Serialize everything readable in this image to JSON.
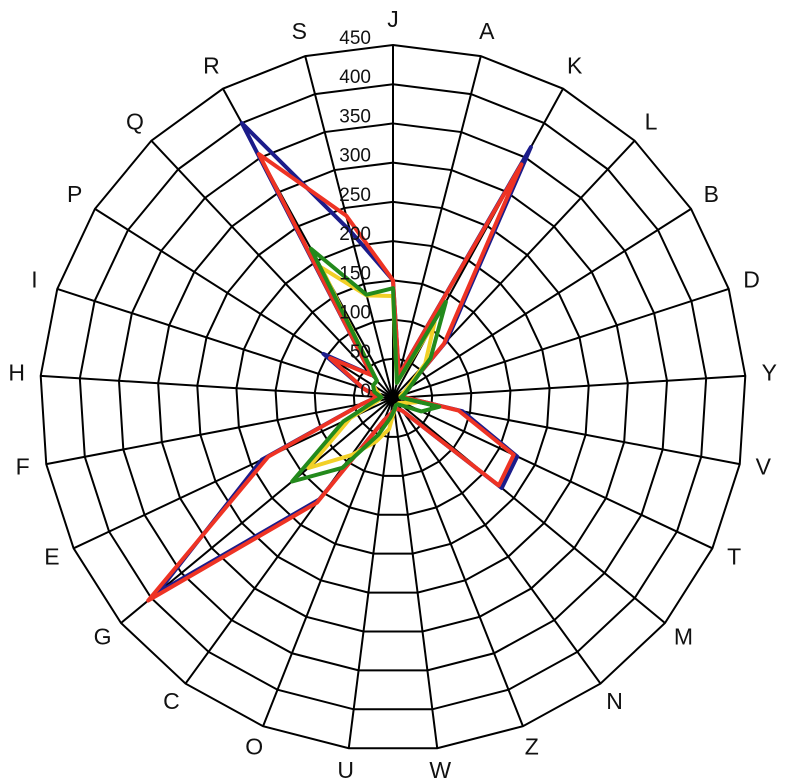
{
  "chart_data": {
    "type": "radar",
    "categories": [
      "J",
      "A",
      "K",
      "L",
      "B",
      "D",
      "Y",
      "V",
      "T",
      "M",
      "N",
      "Z",
      "W",
      "U",
      "O",
      "C",
      "G",
      "E",
      "F",
      "H",
      "I",
      "P",
      "Q",
      "R",
      "S"
    ],
    "ylim": [
      0,
      450
    ],
    "yticks": [
      0,
      50,
      100,
      150,
      200,
      250,
      300,
      350,
      400,
      450
    ],
    "series": [
      {
        "color": "#1c1c8a",
        "values": [
          150,
          30,
          365,
          100,
          20,
          15,
          15,
          90,
          175,
          180,
          20,
          15,
          15,
          20,
          30,
          160,
          390,
          185,
          40,
          20,
          40,
          105,
          40,
          400,
          220
        ]
      },
      {
        "color": "#ee3324",
        "values": [
          150,
          30,
          340,
          95,
          20,
          15,
          15,
          85,
          170,
          175,
          20,
          15,
          15,
          20,
          30,
          165,
          405,
          176,
          40,
          20,
          40,
          95,
          40,
          355,
          240
        ]
      },
      {
        "color": "#f2d027",
        "values": [
          130,
          20,
          110,
          60,
          20,
          10,
          10,
          30,
          15,
          10,
          10,
          10,
          15,
          40,
          60,
          90,
          140,
          60,
          20,
          15,
          20,
          30,
          30,
          190,
          135
        ]
      },
      {
        "color": "#238a1c",
        "values": [
          140,
          20,
          140,
          70,
          25,
          15,
          10,
          60,
          40,
          15,
          10,
          10,
          15,
          25,
          50,
          110,
          167,
          70,
          25,
          15,
          25,
          30,
          30,
          217,
          136
        ]
      }
    ]
  }
}
